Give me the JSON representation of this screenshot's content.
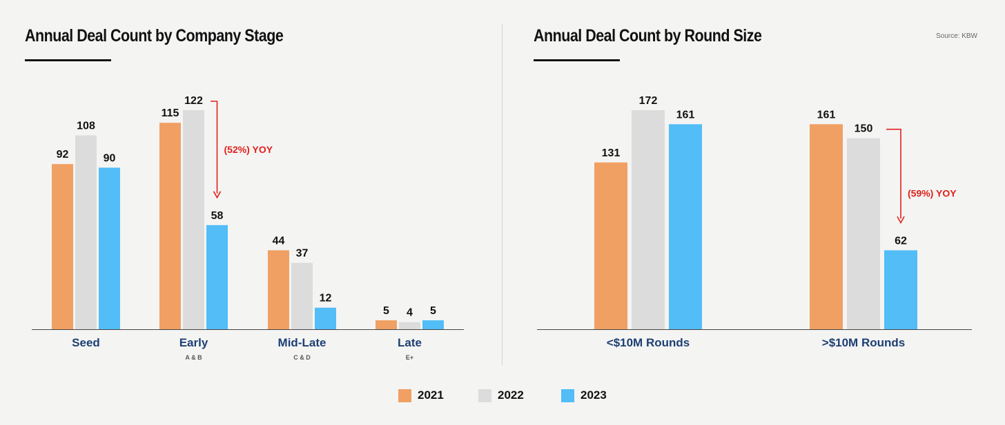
{
  "colors": {
    "2021": "#f0a063",
    "2022": "#dcdcdc",
    "2023": "#52bdf7",
    "annotation": "#e0201b",
    "category": "#1c3f73"
  },
  "source": "Source: KBW",
  "legend": [
    {
      "label": "2021",
      "color": "#f0a063"
    },
    {
      "label": "2022",
      "color": "#dcdcdc"
    },
    {
      "label": "2023",
      "color": "#52bdf7"
    }
  ],
  "chart_data": [
    {
      "type": "bar",
      "title": "Annual Deal Count by Company Stage",
      "categories": [
        "Seed",
        "Early",
        "Mid-Late",
        "Late"
      ],
      "category_subtitles": [
        "",
        "A & B",
        "C & D",
        "E+"
      ],
      "series": [
        {
          "name": "2021",
          "values": [
            92,
            115,
            44,
            5
          ]
        },
        {
          "name": "2022",
          "values": [
            108,
            122,
            37,
            4
          ]
        },
        {
          "name": "2023",
          "values": [
            90,
            58,
            12,
            5
          ]
        }
      ],
      "annotations": [
        {
          "category": "Early",
          "from": "2022",
          "to": "2023",
          "text": "(52%) YOY"
        }
      ],
      "ylim": [
        0,
        122
      ]
    },
    {
      "type": "bar",
      "title": "Annual Deal Count by Round Size",
      "categories": [
        "<$10M Rounds",
        ">$10M Rounds"
      ],
      "category_subtitles": [
        "",
        ""
      ],
      "series": [
        {
          "name": "2021",
          "values": [
            131,
            161
          ]
        },
        {
          "name": "2022",
          "values": [
            172,
            150
          ]
        },
        {
          "name": "2023",
          "values": [
            161,
            62
          ]
        }
      ],
      "annotations": [
        {
          "category": ">$10M Rounds",
          "from": "2022",
          "to": "2023",
          "text": "(59%) YOY"
        }
      ],
      "ylim": [
        0,
        172
      ]
    }
  ]
}
